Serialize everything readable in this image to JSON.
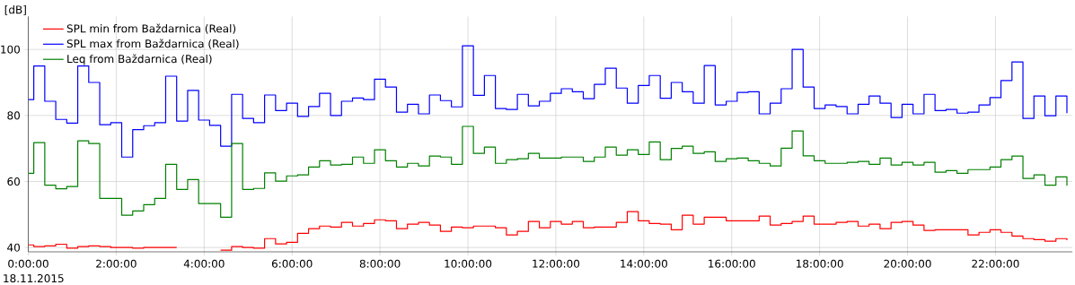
{
  "chart_data": {
    "type": "step",
    "ylabel": "[dB]",
    "annotations": [
      "18.11.2015"
    ],
    "x": [
      0,
      0.125,
      0.375,
      0.625,
      0.875,
      1.125,
      1.375,
      1.625,
      1.875,
      2.125,
      2.375,
      2.625,
      2.875,
      3.125,
      3.375,
      3.625,
      3.875,
      4.125,
      4.375,
      4.625,
      4.875,
      5.125,
      5.375,
      5.625,
      5.875,
      6.125,
      6.375,
      6.625,
      6.875,
      7.125,
      7.375,
      7.625,
      7.875,
      8.125,
      8.375,
      8.625,
      8.875,
      9.125,
      9.375,
      9.625,
      9.875,
      10.125,
      10.375,
      10.625,
      10.875,
      11.125,
      11.375,
      11.625,
      11.875,
      12.125,
      12.375,
      12.625,
      12.875,
      13.125,
      13.375,
      13.625,
      13.875,
      14.125,
      14.375,
      14.625,
      14.875,
      15.125,
      15.375,
      15.625,
      15.875,
      16.125,
      16.375,
      16.625,
      16.875,
      17.125,
      17.375,
      17.625,
      17.875,
      18.125,
      18.375,
      18.625,
      18.875,
      19.125,
      19.375,
      19.625,
      19.875,
      20.125,
      20.375,
      20.625,
      20.875,
      21.125,
      21.375,
      21.625,
      21.875,
      22.125,
      22.375,
      22.625,
      22.875,
      23.125,
      23.375,
      23.625
    ],
    "series": [
      {
        "name": "SPL min from Baždarnica (Real)",
        "color": "#ff0000",
        "values": [
          40.8,
          40.3,
          40.5,
          41.0,
          39.8,
          40.3,
          40.5,
          40.3,
          40.0,
          40.0,
          39.8,
          40.0,
          40.0,
          40.0,
          40.0,
          null,
          null,
          null,
          39.2,
          40.3,
          40.0,
          39.8,
          42.7,
          41.1,
          41.6,
          44.3,
          45.7,
          46.5,
          46.2,
          47.6,
          46.5,
          47.3,
          48.4,
          48.1,
          45.7,
          47.1,
          47.6,
          46.8,
          44.9,
          46.2,
          46.0,
          46.5,
          46.5,
          46.0,
          43.8,
          44.9,
          47.9,
          46.0,
          47.9,
          47.1,
          47.9,
          46.0,
          46.2,
          46.2,
          47.6,
          50.9,
          48.1,
          47.3,
          47.1,
          45.4,
          49.8,
          47.1,
          49.2,
          49.2,
          48.1,
          48.1,
          48.1,
          49.5,
          46.8,
          47.3,
          47.9,
          49.5,
          47.1,
          47.1,
          47.6,
          47.9,
          46.5,
          47.1,
          45.7,
          47.6,
          47.9,
          46.8,
          45.2,
          45.4,
          45.4,
          45.4,
          43.8,
          44.6,
          45.4,
          44.6,
          43.5,
          42.7,
          42.4,
          41.9,
          42.7,
          42.2
        ]
      },
      {
        "name": "SPL max from Baždarnica (Real)",
        "color": "#0000ff",
        "values": [
          84.8,
          95.0,
          84.3,
          78.8,
          77.7,
          95.0,
          90.0,
          77.2,
          77.8,
          67.4,
          75.7,
          76.9,
          77.8,
          91.9,
          78.3,
          87.6,
          78.6,
          77.0,
          70.7,
          86.4,
          79.1,
          77.8,
          86.2,
          81.5,
          83.7,
          79.7,
          82.7,
          86.7,
          80.0,
          84.3,
          85.3,
          84.8,
          91.0,
          88.6,
          81.0,
          83.4,
          80.5,
          86.2,
          84.5,
          82.6,
          101.1,
          86.1,
          92.1,
          82.1,
          81.8,
          86.4,
          82.9,
          84.3,
          86.7,
          88.1,
          87.2,
          85.1,
          89.4,
          94.3,
          88.3,
          83.7,
          89.1,
          92.1,
          85.2,
          90.0,
          87.2,
          83.7,
          95.1,
          83.2,
          84.3,
          87.0,
          87.2,
          80.5,
          83.7,
          88.1,
          100.0,
          88.6,
          82.1,
          83.2,
          82.7,
          80.5,
          83.4,
          85.9,
          83.7,
          79.4,
          83.4,
          80.5,
          86.4,
          81.5,
          81.8,
          80.7,
          81.0,
          83.2,
          85.4,
          90.6,
          96.2,
          79.1,
          85.9,
          79.9,
          85.9,
          80.7
        ]
      },
      {
        "name": "Leq from Baždarnica (Real)",
        "color": "#008000",
        "values": [
          62.5,
          71.8,
          58.9,
          57.8,
          58.5,
          72.3,
          71.5,
          54.9,
          54.9,
          49.8,
          51.1,
          53.0,
          54.9,
          65.2,
          57.6,
          60.6,
          53.3,
          53.3,
          49.2,
          71.5,
          57.6,
          57.9,
          62.6,
          60.1,
          61.7,
          62.0,
          64.4,
          66.3,
          65.0,
          65.2,
          67.4,
          65.5,
          69.6,
          66.3,
          64.4,
          65.5,
          64.7,
          67.7,
          67.4,
          65.2,
          76.7,
          68.5,
          70.4,
          65.5,
          66.6,
          66.9,
          68.5,
          67.1,
          67.1,
          67.4,
          67.4,
          66.1,
          67.4,
          70.4,
          68.0,
          69.6,
          68.2,
          72.0,
          66.6,
          70.0,
          70.7,
          68.5,
          69.0,
          66.1,
          66.9,
          67.1,
          66.3,
          65.5,
          64.7,
          70.1,
          75.3,
          67.8,
          66.3,
          65.5,
          65.5,
          65.8,
          66.1,
          65.2,
          67.1,
          65.0,
          65.8,
          65.0,
          65.8,
          62.8,
          63.3,
          62.5,
          63.6,
          63.6,
          64.4,
          66.6,
          67.7,
          60.9,
          62.0,
          58.9,
          61.4,
          58.7
        ]
      }
    ],
    "xlim": [
      0,
      23.75
    ],
    "ylim": [
      38.7,
      110
    ],
    "xticks": [
      {
        "value": 0,
        "label": "0:00:00"
      },
      {
        "value": 2,
        "label": "2:00:00"
      },
      {
        "value": 4,
        "label": "4:00:00"
      },
      {
        "value": 6,
        "label": "6:00:00"
      },
      {
        "value": 8,
        "label": "8:00:00"
      },
      {
        "value": 10,
        "label": "10:00:00"
      },
      {
        "value": 12,
        "label": "12:00:00"
      },
      {
        "value": 14,
        "label": "14:00:00"
      },
      {
        "value": 16,
        "label": "16:00:00"
      },
      {
        "value": 18,
        "label": "18:00:00"
      },
      {
        "value": 20,
        "label": "20:00:00"
      },
      {
        "value": 22,
        "label": "22:00:00"
      }
    ],
    "yticks": [
      40,
      60,
      80,
      100
    ],
    "grid": true,
    "legend": "top left"
  }
}
